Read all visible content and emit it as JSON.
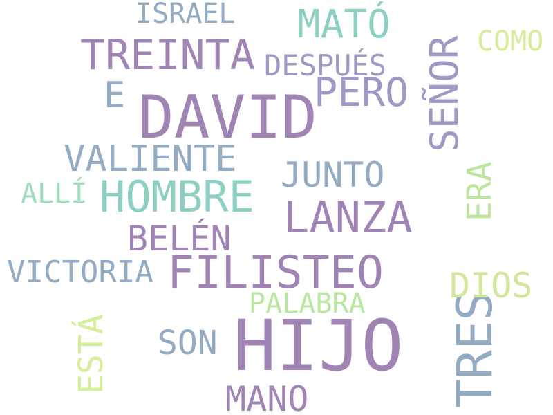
{
  "words": {
    "hijo": {
      "text": "HIJO",
      "color": "#a084b3"
    },
    "david": {
      "text": "DAVID",
      "color": "#a084b3"
    },
    "filisteo": {
      "text": "FILISTEO",
      "color": "#a084b3"
    },
    "tres": {
      "text": "TRES",
      "color": "#93abc3"
    },
    "hombre": {
      "text": "HOMBRE",
      "color": "#8ecfc4"
    },
    "lanza": {
      "text": "LANZA",
      "color": "#a084b3"
    },
    "treinta": {
      "text": "TREINTA",
      "color": "#a084b3"
    },
    "senor": {
      "text": "SEÑOR",
      "color": "#9d9bc3"
    },
    "pero": {
      "text": "PERO",
      "color": "#9d9bc3"
    },
    "valiente": {
      "text": "VALIENTE",
      "color": "#93abc3"
    },
    "mato": {
      "text": "MATÓ",
      "color": "#8ecfc4"
    },
    "mano": {
      "text": "MANO",
      "color": "#a084b3"
    },
    "belen": {
      "text": "BELÉN",
      "color": "#a084b3"
    },
    "junto": {
      "text": "JUNTO",
      "color": "#93abc3"
    },
    "dios": {
      "text": "DIOS",
      "color": "#d3e69d"
    },
    "e": {
      "text": "E",
      "color": "#93abc3"
    },
    "victoria": {
      "text": "VICTORIA",
      "color": "#93abc3"
    },
    "son": {
      "text": "SON",
      "color": "#93abc3"
    },
    "esta": {
      "text": "ESTÁ",
      "color": "#d6ee9a"
    },
    "era": {
      "text": "ERA",
      "color": "#bde59f"
    },
    "despues": {
      "text": "DESPUÉS",
      "color": "#9d9bc3"
    },
    "israel": {
      "text": "ISRAEL",
      "color": "#93abc3"
    },
    "palabra": {
      "text": "PALABRA",
      "color": "#b9e6a1"
    },
    "como": {
      "text": "COMO",
      "color": "#d6ee9a"
    },
    "alli": {
      "text": "ALLÍ",
      "color": "#9fdcbc"
    }
  }
}
